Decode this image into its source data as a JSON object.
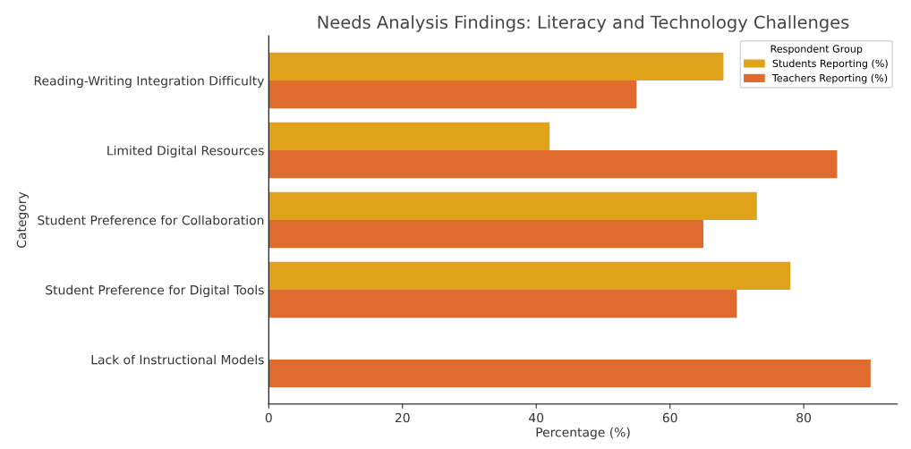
{
  "chart_data": {
    "type": "bar",
    "orientation": "horizontal",
    "title": "Needs Analysis Findings: Literacy and Technology Challenges",
    "xlabel": "Percentage (%)",
    "ylabel": "Category",
    "legend_title": "Respondent Group",
    "legend": "top right",
    "grid": false,
    "categories": [
      "Reading-Writing Integration Difficulty",
      "Limited Digital Resources",
      "Student Preference for Collaboration",
      "Student Preference for Digital Tools",
      "Lack of Instructional Models"
    ],
    "series": [
      {
        "name": "Students Reporting (%)",
        "color": "#e0a11b",
        "values": [
          68,
          42,
          73,
          78,
          null
        ]
      },
      {
        "name": "Teachers Reporting (%)",
        "color": "#df6c2e",
        "values": [
          55,
          85,
          65,
          70,
          90
        ]
      }
    ],
    "xlim": [
      0,
      94
    ],
    "xticks": [
      0,
      20,
      40,
      60,
      80
    ]
  }
}
